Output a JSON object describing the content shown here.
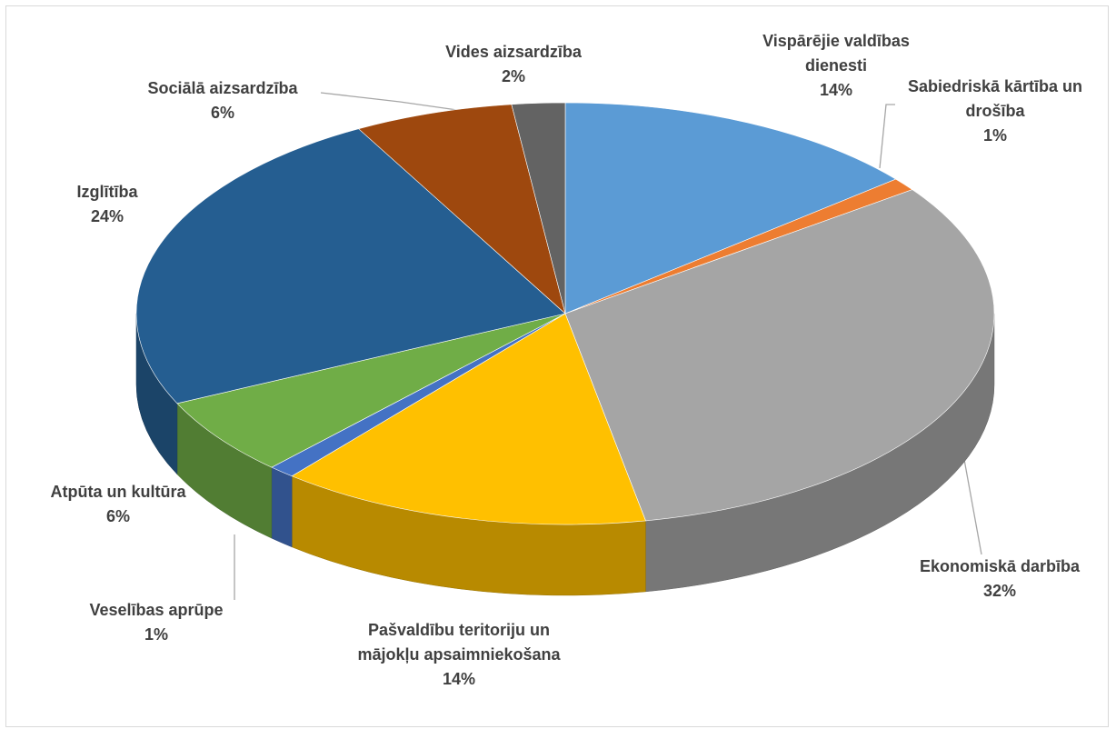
{
  "chart_data": {
    "type": "pie3d",
    "categories": [
      "Vispārējie valdības dienesti",
      "Sabiedriskā kārtība un drošība",
      "Ekonomiskā darbība",
      "Pašvaldību teritoriju un mājokļu apsaimniekošana",
      "Veselības aprūpe",
      "Atpūta un kultūra",
      "Izglītība",
      "Sociālā aizsardzība",
      "Vides aizsardzība"
    ],
    "values": [
      14,
      1,
      32,
      14,
      1,
      6,
      24,
      6,
      2
    ],
    "value_labels": [
      "14%",
      "1%",
      "32%",
      "14%",
      "1%",
      "6%",
      "24%",
      "6%",
      "2%"
    ],
    "colors": [
      "#5b9bd5",
      "#ed7d31",
      "#a5a5a5",
      "#ffc000",
      "#4472c4",
      "#70ad47",
      "#255e91",
      "#9e480e",
      "#636363"
    ]
  }
}
